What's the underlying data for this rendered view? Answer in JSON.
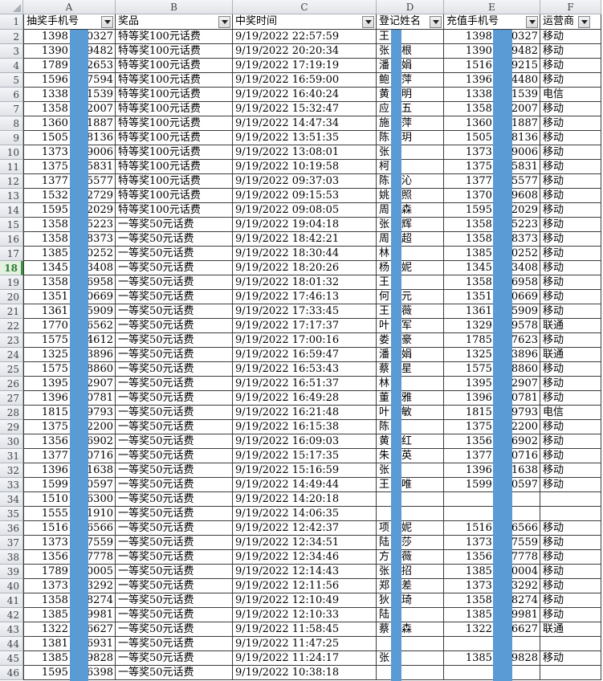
{
  "sheet": {
    "column_letters": [
      "A",
      "B",
      "C",
      "D",
      "E",
      "F"
    ],
    "headers": [
      {
        "label": "抽奖手机号"
      },
      {
        "label": "奖品"
      },
      {
        "label": "中奖时间"
      },
      {
        "label": "登记姓名"
      },
      {
        "label": "充值手机号"
      },
      {
        "label": "运营商"
      }
    ],
    "header_row_number": "1",
    "selected_row": 18,
    "colors": {
      "redaction_blue": "#5B9BD5",
      "selected_row_green": "#3e9142",
      "cell_border": "#3b3b3b"
    },
    "rows": [
      {
        "n": "2",
        "a_prefix": "1398",
        "a_suffix": "0327",
        "prize": "特等奖100元话费",
        "time": "9/19/2022 22:57:59",
        "surname": "王",
        "given": "",
        "e_prefix": "1398",
        "e_suffix": "0327",
        "carrier": "移动"
      },
      {
        "n": "3",
        "a_prefix": "1390",
        "a_suffix": "9482",
        "prize": "特等奖100元话费",
        "time": "9/19/2022 20:20:34",
        "surname": "张",
        "given": "根",
        "e_prefix": "1390",
        "e_suffix": "9482",
        "carrier": "移动"
      },
      {
        "n": "4",
        "a_prefix": "1789",
        "a_suffix": "2653",
        "prize": "特等奖100元话费",
        "time": "9/19/2022 17:19:19",
        "surname": "潘",
        "given": "娟",
        "e_prefix": "1516",
        "e_suffix": "9215",
        "carrier": "移动"
      },
      {
        "n": "5",
        "a_prefix": "1596",
        "a_suffix": "7594",
        "prize": "特等奖100元话费",
        "time": "9/19/2022 16:59:00",
        "surname": "鲍",
        "given": "萍",
        "e_prefix": "1396",
        "e_suffix": "4480",
        "carrier": "移动"
      },
      {
        "n": "6",
        "a_prefix": "1338",
        "a_suffix": "1539",
        "prize": "特等奖100元话费",
        "time": "9/19/2022 16:40:24",
        "surname": "黄",
        "given": "明",
        "e_prefix": "1338",
        "e_suffix": "1539",
        "carrier": "电信"
      },
      {
        "n": "7",
        "a_prefix": "1358",
        "a_suffix": "2007",
        "prize": "特等奖100元话费",
        "time": "9/19/2022 15:32:47",
        "surname": "应",
        "given": "五",
        "e_prefix": "1358",
        "e_suffix": "2007",
        "carrier": "移动"
      },
      {
        "n": "8",
        "a_prefix": "1360",
        "a_suffix": "1887",
        "prize": "特等奖100元话费",
        "time": "9/19/2022 14:47:34",
        "surname": "施",
        "given": "萍",
        "e_prefix": "1360",
        "e_suffix": "1887",
        "carrier": "移动"
      },
      {
        "n": "9",
        "a_prefix": "1505",
        "a_suffix": "8136",
        "prize": "特等奖100元话费",
        "time": "9/19/2022 13:51:35",
        "surname": "陈",
        "given": "玥",
        "e_prefix": "1505",
        "e_suffix": "8136",
        "carrier": "移动"
      },
      {
        "n": "10",
        "a_prefix": "1373",
        "a_suffix": "9006",
        "prize": "特等奖100元话费",
        "time": "9/19/2022 13:08:01",
        "surname": "张",
        "given": "",
        "e_prefix": "1373",
        "e_suffix": "9006",
        "carrier": "移动"
      },
      {
        "n": "11",
        "a_prefix": "1375",
        "a_suffix": "5831",
        "prize": "特等奖100元话费",
        "time": "9/19/2022 10:19:58",
        "surname": "柯",
        "given": "",
        "e_prefix": "1375",
        "e_suffix": "5831",
        "carrier": "移动"
      },
      {
        "n": "12",
        "a_prefix": "1377",
        "a_suffix": "5577",
        "prize": "特等奖100元话费",
        "time": "9/19/2022 09:37:03",
        "surname": "陈",
        "given": "沁",
        "e_prefix": "1377",
        "e_suffix": "5577",
        "carrier": "移动"
      },
      {
        "n": "13",
        "a_prefix": "1532",
        "a_suffix": "2729",
        "prize": "特等奖100元话费",
        "time": "9/19/2022 09:15:53",
        "surname": "姚",
        "given": "照",
        "e_prefix": "1370",
        "e_suffix": "9608",
        "carrier": "移动"
      },
      {
        "n": "14",
        "a_prefix": "1595",
        "a_suffix": "2029",
        "prize": "特等奖100元话费",
        "time": "9/19/2022 09:08:05",
        "surname": "周",
        "given": "森",
        "e_prefix": "1595",
        "e_suffix": "2029",
        "carrier": "移动"
      },
      {
        "n": "15",
        "a_prefix": "1358",
        "a_suffix": "5223",
        "prize": "一等奖50元话费",
        "time": "9/19/2022 19:04:18",
        "surname": "张",
        "given": "辉",
        "e_prefix": "1358",
        "e_suffix": "5223",
        "carrier": "移动"
      },
      {
        "n": "16",
        "a_prefix": "1358",
        "a_suffix": "8373",
        "prize": "一等奖50元话费",
        "time": "9/19/2022 18:42:21",
        "surname": "周",
        "given": "超",
        "e_prefix": "1358",
        "e_suffix": "8373",
        "carrier": "移动"
      },
      {
        "n": "17",
        "a_prefix": "1385",
        "a_suffix": "0252",
        "prize": "一等奖50元话费",
        "time": "9/19/2022 18:30:44",
        "surname": "林",
        "given": "",
        "e_prefix": "1385",
        "e_suffix": "0252",
        "carrier": "移动"
      },
      {
        "n": "18",
        "a_prefix": "1345",
        "a_suffix": "3408",
        "prize": "一等奖50元话费",
        "time": "9/19/2022 18:20:26",
        "surname": "杨",
        "given": "妮",
        "e_prefix": "1345",
        "e_suffix": "3408",
        "carrier": "移动"
      },
      {
        "n": "19",
        "a_prefix": "1358",
        "a_suffix": "6958",
        "prize": "一等奖50元话费",
        "time": "9/19/2022 18:01:32",
        "surname": "王",
        "given": "",
        "e_prefix": "1358",
        "e_suffix": "6958",
        "carrier": "移动"
      },
      {
        "n": "20",
        "a_prefix": "1351",
        "a_suffix": "0669",
        "prize": "一等奖50元话费",
        "time": "9/19/2022 17:46:13",
        "surname": "何",
        "given": "元",
        "e_prefix": "1351",
        "e_suffix": "0669",
        "carrier": "移动"
      },
      {
        "n": "21",
        "a_prefix": "1361",
        "a_suffix": "5909",
        "prize": "一等奖50元话费",
        "time": "9/19/2022 17:33:45",
        "surname": "王",
        "given": "薇",
        "e_prefix": "1361",
        "e_suffix": "5909",
        "carrier": "移动"
      },
      {
        "n": "22",
        "a_prefix": "1770",
        "a_suffix": "6562",
        "prize": "一等奖50元话费",
        "time": "9/19/2022 17:17:37",
        "surname": "叶",
        "given": "军",
        "e_prefix": "1329",
        "e_suffix": "9578",
        "carrier": "联通"
      },
      {
        "n": "23",
        "a_prefix": "1575",
        "a_suffix": "4612",
        "prize": "一等奖50元话费",
        "time": "9/19/2022 17:00:16",
        "surname": "娄",
        "given": "豪",
        "e_prefix": "1785",
        "e_suffix": "7623",
        "carrier": "移动"
      },
      {
        "n": "24",
        "a_prefix": "1325",
        "a_suffix": "3896",
        "prize": "一等奖50元话费",
        "time": "9/19/2022 16:59:47",
        "surname": "潘",
        "given": "娟",
        "e_prefix": "1325",
        "e_suffix": "3896",
        "carrier": "联通"
      },
      {
        "n": "25",
        "a_prefix": "1575",
        "a_suffix": "8860",
        "prize": "一等奖50元话费",
        "time": "9/19/2022 16:53:43",
        "surname": "蔡",
        "given": "星",
        "e_prefix": "1575",
        "e_suffix": "8860",
        "carrier": "移动"
      },
      {
        "n": "26",
        "a_prefix": "1395",
        "a_suffix": "2907",
        "prize": "一等奖50元话费",
        "time": "9/19/2022 16:51:37",
        "surname": "林",
        "given": "",
        "e_prefix": "1395",
        "e_suffix": "2907",
        "carrier": "移动"
      },
      {
        "n": "27",
        "a_prefix": "1396",
        "a_suffix": "0781",
        "prize": "一等奖50元话费",
        "time": "9/19/2022 16:49:28",
        "surname": "董",
        "given": "雅",
        "e_prefix": "1396",
        "e_suffix": "0781",
        "carrier": "移动"
      },
      {
        "n": "28",
        "a_prefix": "1815",
        "a_suffix": "9793",
        "prize": "一等奖50元话费",
        "time": "9/19/2022 16:21:48",
        "surname": "叶",
        "given": "敏",
        "e_prefix": "1815",
        "e_suffix": "9793",
        "carrier": "电信"
      },
      {
        "n": "29",
        "a_prefix": "1375",
        "a_suffix": "2200",
        "prize": "一等奖50元话费",
        "time": "9/19/2022 16:15:38",
        "surname": "陈",
        "given": "",
        "e_prefix": "1375",
        "e_suffix": "2200",
        "carrier": "移动"
      },
      {
        "n": "30",
        "a_prefix": "1356",
        "a_suffix": "6902",
        "prize": "一等奖50元话费",
        "time": "9/19/2022 16:09:03",
        "surname": "黄",
        "given": "红",
        "e_prefix": "1356",
        "e_suffix": "6902",
        "carrier": "移动"
      },
      {
        "n": "31",
        "a_prefix": "1377",
        "a_suffix": "0716",
        "prize": "一等奖50元话费",
        "time": "9/19/2022 15:17:35",
        "surname": "朱",
        "given": "英",
        "e_prefix": "1377",
        "e_suffix": "0716",
        "carrier": "移动"
      },
      {
        "n": "32",
        "a_prefix": "1396",
        "a_suffix": "1638",
        "prize": "一等奖50元话费",
        "time": "9/19/2022 15:16:59",
        "surname": "张",
        "given": "",
        "e_prefix": "1396",
        "e_suffix": "1638",
        "carrier": "移动"
      },
      {
        "n": "33",
        "a_prefix": "1599",
        "a_suffix": "0597",
        "prize": "一等奖50元话费",
        "time": "9/19/2022 14:49:44",
        "surname": "王",
        "given": "唯",
        "e_prefix": "1599",
        "e_suffix": "0597",
        "carrier": "移动"
      },
      {
        "n": "34",
        "a_prefix": "1510",
        "a_suffix": "6300",
        "prize": "一等奖50元话费",
        "time": "9/19/2022 14:20:18",
        "surname": "",
        "given": "",
        "e_prefix": "",
        "e_suffix": "",
        "carrier": ""
      },
      {
        "n": "35",
        "a_prefix": "1555",
        "a_suffix": "1910",
        "prize": "一等奖50元话费",
        "time": "9/19/2022 14:06:35",
        "surname": "",
        "given": "",
        "e_prefix": "",
        "e_suffix": "",
        "carrier": ""
      },
      {
        "n": "36",
        "a_prefix": "1516",
        "a_suffix": "6566",
        "prize": "一等奖50元话费",
        "time": "9/19/2022 12:42:37",
        "surname": "项",
        "given": "妮",
        "e_prefix": "1516",
        "e_suffix": "6566",
        "carrier": "移动"
      },
      {
        "n": "37",
        "a_prefix": "1373",
        "a_suffix": "7559",
        "prize": "一等奖50元话费",
        "time": "9/19/2022 12:34:51",
        "surname": "陆",
        "given": "莎",
        "e_prefix": "1373",
        "e_suffix": "7559",
        "carrier": "移动"
      },
      {
        "n": "38",
        "a_prefix": "1356",
        "a_suffix": "7778",
        "prize": "一等奖50元话费",
        "time": "9/19/2022 12:34:46",
        "surname": "方",
        "given": "薇",
        "e_prefix": "1356",
        "e_suffix": "7778",
        "carrier": "移动"
      },
      {
        "n": "39",
        "a_prefix": "1789",
        "a_suffix": "0005",
        "prize": "一等奖50元话费",
        "time": "9/19/2022 12:14:43",
        "surname": "张",
        "given": "招",
        "e_prefix": "1385",
        "e_suffix": "0004",
        "carrier": "移动"
      },
      {
        "n": "40",
        "a_prefix": "1373",
        "a_suffix": "3292",
        "prize": "一等奖50元话费",
        "time": "9/19/2022 12:11:56",
        "surname": "郑",
        "given": "差",
        "e_prefix": "1373",
        "e_suffix": "3292",
        "carrier": "移动"
      },
      {
        "n": "41",
        "a_prefix": "1358",
        "a_suffix": "8274",
        "prize": "一等奖50元话费",
        "time": "9/19/2022 12:10:49",
        "surname": "狄",
        "given": "琦",
        "e_prefix": "1358",
        "e_suffix": "8274",
        "carrier": "移动"
      },
      {
        "n": "42",
        "a_prefix": "1385",
        "a_suffix": "9981",
        "prize": "一等奖50元话费",
        "time": "9/19/2022 12:10:33",
        "surname": "陆",
        "given": "",
        "e_prefix": "1385",
        "e_suffix": "9981",
        "carrier": "移动"
      },
      {
        "n": "43",
        "a_prefix": "1322",
        "a_suffix": "6627",
        "prize": "一等奖50元话费",
        "time": "9/19/2022 11:58:45",
        "surname": "蔡",
        "given": "森",
        "e_prefix": "1322",
        "e_suffix": "6627",
        "carrier": "联通"
      },
      {
        "n": "44",
        "a_prefix": "1381",
        "a_suffix": "6931",
        "prize": "一等奖50元话费",
        "time": "9/19/2022 11:47:25",
        "surname": "",
        "given": "",
        "e_prefix": "",
        "e_suffix": "",
        "carrier": ""
      },
      {
        "n": "45",
        "a_prefix": "1385",
        "a_suffix": "9828",
        "prize": "一等奖50元话费",
        "time": "9/19/2022 11:24:17",
        "surname": "张",
        "given": "",
        "e_prefix": "1385",
        "e_suffix": "9828",
        "carrier": "移动"
      },
      {
        "n": "46",
        "a_prefix": "1595",
        "a_suffix": "6398",
        "prize": "一等奖50元话费",
        "time": "9/19/2022 10:38:18",
        "surname": "",
        "given": "",
        "e_prefix": "",
        "e_suffix": "",
        "carrier": ""
      }
    ]
  }
}
